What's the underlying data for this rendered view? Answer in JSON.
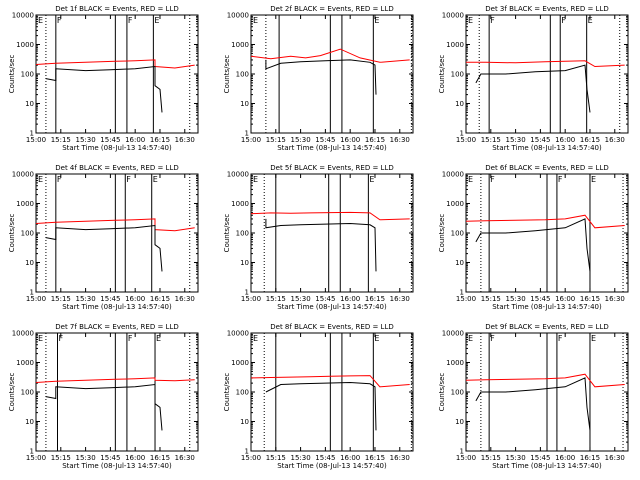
{
  "chart_data": {
    "type": "line",
    "y_scale": "log",
    "ylim": [
      1,
      10000
    ],
    "xlim": [
      "15:00",
      "16:38"
    ],
    "x_ticks": [
      "15:00",
      "15:15",
      "15:30",
      "15:45",
      "16:00",
      "16:15",
      "16:30"
    ],
    "y_ticks": [
      "1",
      "10",
      "100",
      "1000",
      "10000"
    ],
    "ylabel": "Counts/sec",
    "xlabel": "Start Time (08-Jul-13 14:57:40)",
    "series_colors": {
      "events": "#000000",
      "lld": "#ff0000"
    },
    "legend": "none",
    "grid": false,
    "panels": [
      {
        "title": "Det 1f BLACK = Events, RED = LLD",
        "markers": [
          {
            "x": "15:12",
            "label": "F"
          },
          {
            "x": "15:48",
            "label": ""
          },
          {
            "x": "15:55",
            "label": "F"
          },
          {
            "x": "16:11",
            "label": "E"
          }
        ],
        "dotted": [
          "15:06",
          "16:33"
        ],
        "corner_label": "E",
        "events": [
          [
            15.1,
            70
          ],
          [
            15.2,
            60
          ],
          [
            15.2,
            150
          ],
          [
            15.5,
            130
          ],
          [
            15.75,
            140
          ],
          [
            16.0,
            150
          ],
          [
            16.2,
            180
          ],
          [
            16.2,
            40
          ],
          [
            16.25,
            30
          ],
          [
            16.27,
            5
          ]
        ],
        "lld": [
          [
            15.0,
            210
          ],
          [
            15.2,
            230
          ],
          [
            15.5,
            250
          ],
          [
            15.8,
            270
          ],
          [
            16.0,
            280
          ],
          [
            16.2,
            300
          ],
          [
            16.2,
            180
          ],
          [
            16.4,
            160
          ],
          [
            16.6,
            200
          ]
        ]
      },
      {
        "title": "Det 2f BLACK = Events, RED = LLD",
        "markers": [
          {
            "x": "15:17",
            "label": ""
          },
          {
            "x": "15:48",
            "label": ""
          },
          {
            "x": "15:55",
            "label": ""
          },
          {
            "x": "16:14",
            "label": "E"
          }
        ],
        "dotted": [
          "15:09",
          "16:37"
        ],
        "corner_label": "E",
        "events": [
          [
            15.15,
            300
          ],
          [
            15.15,
            150
          ],
          [
            15.3,
            230
          ],
          [
            15.5,
            260
          ],
          [
            15.75,
            280
          ],
          [
            16.0,
            300
          ],
          [
            16.2,
            250
          ],
          [
            16.25,
            200
          ],
          [
            16.26,
            20
          ]
        ],
        "lld": [
          [
            15.0,
            400
          ],
          [
            15.2,
            330
          ],
          [
            15.4,
            400
          ],
          [
            15.55,
            350
          ],
          [
            15.7,
            420
          ],
          [
            15.9,
            700
          ],
          [
            16.1,
            350
          ],
          [
            16.3,
            250
          ],
          [
            16.6,
            300
          ]
        ]
      },
      {
        "title": "Det 3f BLACK = Events, RED = LLD",
        "markers": [
          {
            "x": "15:14",
            "label": "F"
          },
          {
            "x": "15:51",
            "label": ""
          },
          {
            "x": "15:57",
            "label": "F"
          },
          {
            "x": "16:13",
            "label": "E"
          }
        ],
        "dotted": [
          "15:08",
          "16:33"
        ],
        "corner_label": "E",
        "events": [
          [
            15.1,
            50
          ],
          [
            15.15,
            100
          ],
          [
            15.4,
            100
          ],
          [
            15.7,
            120
          ],
          [
            16.0,
            130
          ],
          [
            16.2,
            200
          ],
          [
            16.22,
            30
          ],
          [
            16.25,
            5
          ]
        ],
        "lld": [
          [
            15.0,
            250
          ],
          [
            15.2,
            250
          ],
          [
            15.5,
            240
          ],
          [
            15.8,
            260
          ],
          [
            16.0,
            270
          ],
          [
            16.2,
            280
          ],
          [
            16.3,
            180
          ],
          [
            16.6,
            200
          ]
        ]
      },
      {
        "title": "Det 4f BLACK = Events, RED = LLD",
        "markers": [
          {
            "x": "15:12",
            "label": "F"
          },
          {
            "x": "15:48",
            "label": ""
          },
          {
            "x": "15:54",
            "label": "F"
          },
          {
            "x": "16:10",
            "label": "E"
          }
        ],
        "dotted": [
          "15:06",
          "16:33"
        ],
        "corner_label": "E",
        "events": [
          [
            15.1,
            70
          ],
          [
            15.2,
            60
          ],
          [
            15.2,
            150
          ],
          [
            15.5,
            130
          ],
          [
            15.75,
            140
          ],
          [
            16.0,
            150
          ],
          [
            16.2,
            180
          ],
          [
            16.2,
            40
          ],
          [
            16.25,
            30
          ],
          [
            16.27,
            5
          ]
        ],
        "lld": [
          [
            15.0,
            210
          ],
          [
            15.2,
            230
          ],
          [
            15.5,
            250
          ],
          [
            15.8,
            270
          ],
          [
            16.0,
            280
          ],
          [
            16.2,
            300
          ],
          [
            16.2,
            130
          ],
          [
            16.4,
            120
          ],
          [
            16.6,
            150
          ]
        ]
      },
      {
        "title": "Det 5f BLACK = Events, RED = LLD",
        "markers": [
          {
            "x": "15:15",
            "label": ""
          },
          {
            "x": "15:47",
            "label": ""
          },
          {
            "x": "15:54",
            "label": ""
          },
          {
            "x": "16:11",
            "label": "E"
          }
        ],
        "dotted": [
          "15:08",
          "16:37"
        ],
        "corner_label": "E",
        "events": [
          [
            15.15,
            300
          ],
          [
            15.15,
            150
          ],
          [
            15.3,
            180
          ],
          [
            15.5,
            190
          ],
          [
            15.75,
            200
          ],
          [
            16.0,
            210
          ],
          [
            16.2,
            190
          ],
          [
            16.25,
            150
          ],
          [
            16.26,
            5
          ]
        ],
        "lld": [
          [
            15.0,
            450
          ],
          [
            15.2,
            480
          ],
          [
            15.4,
            470
          ],
          [
            15.6,
            480
          ],
          [
            15.8,
            490
          ],
          [
            16.0,
            500
          ],
          [
            16.2,
            480
          ],
          [
            16.3,
            280
          ],
          [
            16.6,
            300
          ]
        ]
      },
      {
        "title": "Det 6f BLACK = Events, RED = LLD",
        "markers": [
          {
            "x": "15:14",
            "label": "F"
          },
          {
            "x": "15:49",
            "label": ""
          },
          {
            "x": "15:55",
            "label": "F"
          },
          {
            "x": "16:15",
            "label": "E"
          }
        ],
        "dotted": [
          "15:09",
          "16:35"
        ],
        "corner_label": "E",
        "events": [
          [
            15.1,
            50
          ],
          [
            15.15,
            100
          ],
          [
            15.4,
            100
          ],
          [
            15.7,
            120
          ],
          [
            16.0,
            150
          ],
          [
            16.2,
            300
          ],
          [
            16.22,
            30
          ],
          [
            16.25,
            5
          ]
        ],
        "lld": [
          [
            15.0,
            250
          ],
          [
            15.2,
            260
          ],
          [
            15.5,
            270
          ],
          [
            15.8,
            280
          ],
          [
            16.0,
            300
          ],
          [
            16.2,
            400
          ],
          [
            16.3,
            150
          ],
          [
            16.6,
            180
          ]
        ]
      },
      {
        "title": "Det 7f BLACK = Events, RED = LLD",
        "markers": [
          {
            "x": "15:13",
            "label": "F"
          },
          {
            "x": "15:48",
            "label": ""
          },
          {
            "x": "15:55",
            "label": "F"
          },
          {
            "x": "16:12",
            "label": "E"
          }
        ],
        "dotted": [
          "15:06",
          "16:33"
        ],
        "corner_label": "E",
        "events": [
          [
            15.1,
            70
          ],
          [
            15.2,
            60
          ],
          [
            15.2,
            150
          ],
          [
            15.5,
            130
          ],
          [
            15.75,
            140
          ],
          [
            16.0,
            150
          ],
          [
            16.2,
            180
          ],
          [
            16.2,
            40
          ],
          [
            16.25,
            30
          ],
          [
            16.27,
            5
          ]
        ],
        "lld": [
          [
            15.0,
            210
          ],
          [
            15.2,
            230
          ],
          [
            15.5,
            250
          ],
          [
            15.8,
            270
          ],
          [
            16.0,
            280
          ],
          [
            16.2,
            300
          ],
          [
            16.2,
            250
          ],
          [
            16.4,
            240
          ],
          [
            16.6,
            260
          ]
        ]
      },
      {
        "title": "Det 8f BLACK = Events, RED = LLD",
        "markers": [
          {
            "x": "15:15",
            "label": ""
          },
          {
            "x": "15:48",
            "label": ""
          },
          {
            "x": "15:55",
            "label": ""
          },
          {
            "x": "16:14",
            "label": "E"
          }
        ],
        "dotted": [
          "15:08",
          "16:37"
        ],
        "corner_label": "E",
        "events": [
          [
            15.15,
            100
          ],
          [
            15.3,
            180
          ],
          [
            15.5,
            190
          ],
          [
            15.75,
            200
          ],
          [
            16.0,
            210
          ],
          [
            16.2,
            190
          ],
          [
            16.25,
            150
          ],
          [
            16.26,
            5
          ]
        ],
        "lld": [
          [
            15.0,
            300
          ],
          [
            15.2,
            310
          ],
          [
            15.4,
            320
          ],
          [
            15.6,
            330
          ],
          [
            15.8,
            340
          ],
          [
            16.0,
            350
          ],
          [
            16.2,
            360
          ],
          [
            16.3,
            150
          ],
          [
            16.6,
            180
          ]
        ]
      },
      {
        "title": "Det 9f BLACK = Events, RED = LLD",
        "markers": [
          {
            "x": "15:14",
            "label": "F"
          },
          {
            "x": "15:49",
            "label": ""
          },
          {
            "x": "15:55",
            "label": "F"
          },
          {
            "x": "16:15",
            "label": "E"
          }
        ],
        "dotted": [
          "15:09",
          "16:35"
        ],
        "corner_label": "E",
        "events": [
          [
            15.1,
            50
          ],
          [
            15.15,
            100
          ],
          [
            15.4,
            100
          ],
          [
            15.7,
            120
          ],
          [
            16.0,
            150
          ],
          [
            16.2,
            300
          ],
          [
            16.22,
            30
          ],
          [
            16.25,
            5
          ]
        ],
        "lld": [
          [
            15.0,
            250
          ],
          [
            15.2,
            260
          ],
          [
            15.5,
            270
          ],
          [
            15.8,
            280
          ],
          [
            16.0,
            300
          ],
          [
            16.2,
            400
          ],
          [
            16.3,
            150
          ],
          [
            16.6,
            180
          ]
        ]
      }
    ]
  }
}
